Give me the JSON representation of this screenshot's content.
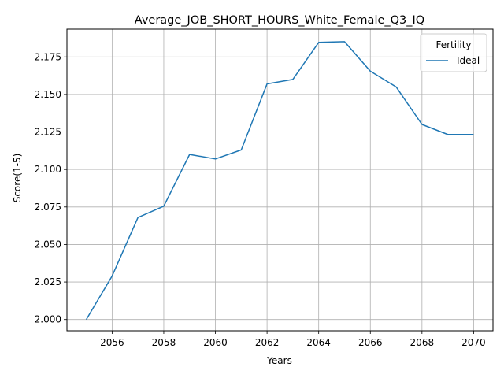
{
  "chart_data": {
    "type": "line",
    "title": "Average_JOB_SHORT_HOURS_White_Female_Q3_IQ",
    "xlabel": "Years",
    "ylabel": "Score(1-5)",
    "xlim": [
      2054.25,
      2070.75
    ],
    "ylim": [
      1.9925,
      2.1935
    ],
    "xticks": [
      2056,
      2058,
      2060,
      2062,
      2064,
      2066,
      2068,
      2070
    ],
    "yticks": [
      2.0,
      2.025,
      2.05,
      2.075,
      2.1,
      2.125,
      2.15,
      2.175
    ],
    "xtick_labels": [
      "2056",
      "2058",
      "2060",
      "2062",
      "2064",
      "2066",
      "2068",
      "2070"
    ],
    "ytick_labels": [
      "2.000",
      "2.025",
      "2.050",
      "2.075",
      "2.100",
      "2.125",
      "2.150",
      "2.175"
    ],
    "grid": true,
    "legend": {
      "title": "Fertility",
      "placement": "top-right"
    },
    "series": [
      {
        "name": "Ideal",
        "color": "#1f77b4",
        "x": [
          2055,
          2056,
          2057,
          2058,
          2059,
          2060,
          2061,
          2062,
          2063,
          2064,
          2065,
          2066,
          2067,
          2068,
          2069,
          2070
        ],
        "y": [
          2.0,
          2.029,
          2.068,
          2.0755,
          2.11,
          2.107,
          2.113,
          2.157,
          2.16,
          2.1847,
          2.1852,
          2.1655,
          2.155,
          2.13,
          2.1233,
          2.1233
        ]
      }
    ]
  }
}
